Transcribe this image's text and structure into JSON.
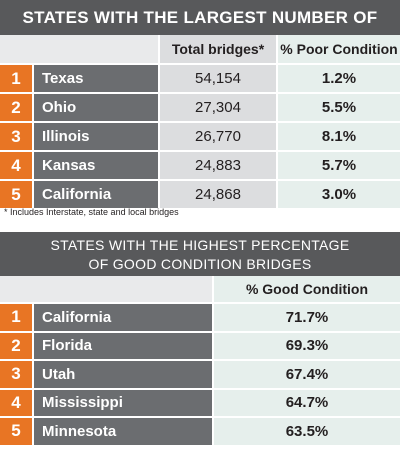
{
  "chart_data": [
    {
      "type": "table",
      "title": "STATES WITH THE LARGEST NUMBER OF BRIDGES",
      "columns": [
        "Total bridges*",
        "% Poor Condition"
      ],
      "rows": [
        {
          "rank": "1",
          "state": "Texas",
          "total": "54,154",
          "poor": "1.2%"
        },
        {
          "rank": "2",
          "state": "Ohio",
          "total": "27,304",
          "poor": "5.5%"
        },
        {
          "rank": "3",
          "state": "Illinois",
          "total": "26,770",
          "poor": "8.1%"
        },
        {
          "rank": "4",
          "state": "Kansas",
          "total": "24,883",
          "poor": "5.7%"
        },
        {
          "rank": "5",
          "state": "California",
          "total": "24,868",
          "poor": "3.0%"
        }
      ],
      "footnote": "* Includes Interstate, state and local bridges"
    },
    {
      "type": "table",
      "title_line1": "STATES WITH THE HIGHEST PERCENTAGE",
      "title_line2": "OF GOOD CONDITION BRIDGES",
      "columns": [
        "% Good Condition"
      ],
      "rows": [
        {
          "rank": "1",
          "state": "California",
          "good": "71.7%"
        },
        {
          "rank": "2",
          "state": "Florida",
          "good": "69.3%"
        },
        {
          "rank": "3",
          "state": "Utah",
          "good": "67.4%"
        },
        {
          "rank": "4",
          "state": "Mississippi",
          "good": "64.7%"
        },
        {
          "rank": "5",
          "state": "Minnesota",
          "good": "63.5%"
        }
      ]
    }
  ],
  "colors": {
    "banner": "#58595b",
    "rank": "#e87524",
    "state": "#6b6d70",
    "value_grey": "#dcdddf",
    "value_green": "#e6efec"
  }
}
